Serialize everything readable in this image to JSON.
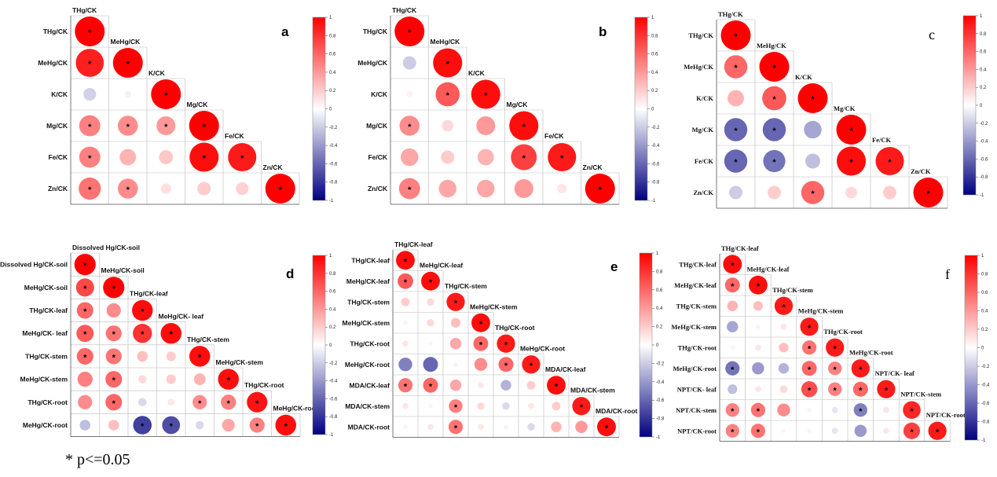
{
  "footnote": "* p<=0.05",
  "chart_data": [
    {
      "type": "heatmap",
      "panel": "a",
      "variables": [
        "THg/CK",
        "MeHg/CK",
        "K/CK",
        "Mg/CK",
        "Fe/CK",
        "Zn/CK"
      ],
      "colorbar_ticks": [
        1,
        0.8,
        0.6,
        0.4,
        0.2,
        0,
        -0.2,
        -0.4,
        -0.6,
        -0.8,
        -1
      ],
      "clim": [
        -1,
        1
      ],
      "values": [
        [
          1
        ],
        [
          0.88,
          1
        ],
        [
          -0.18,
          -0.05,
          1
        ],
        [
          0.5,
          0.45,
          0.4,
          1
        ],
        [
          0.5,
          0.3,
          0.22,
          0.95,
          0.9
        ],
        [
          0.55,
          0.45,
          0.12,
          0.2,
          0.18,
          1
        ]
      ],
      "significant": [
        [
          true
        ],
        [
          true,
          true
        ],
        [
          false,
          false,
          true
        ],
        [
          true,
          true,
          true,
          true
        ],
        [
          true,
          false,
          false,
          true,
          true
        ],
        [
          true,
          true,
          false,
          false,
          false,
          true
        ]
      ]
    },
    {
      "type": "heatmap",
      "panel": "b",
      "variables": [
        "THg/CK",
        "MeHg/CK",
        "K/CK",
        "Mg/CK",
        "Fe/CK",
        "Zn/CK"
      ],
      "colorbar_ticks": [
        1,
        0.8,
        0.6,
        0.4,
        0.2,
        0,
        -0.2,
        -0.4,
        -0.6,
        -0.8,
        -1
      ],
      "clim": [
        -1,
        1
      ],
      "values": [
        [
          1
        ],
        [
          -0.2,
          0.95
        ],
        [
          0.05,
          0.65,
          0.95
        ],
        [
          0.45,
          0.15,
          0.4,
          0.95
        ],
        [
          0.35,
          0.2,
          0.3,
          0.75,
          0.9
        ],
        [
          0.5,
          0.35,
          0.35,
          0.4,
          0.1,
          1
        ]
      ],
      "significant": [
        [
          true
        ],
        [
          false,
          true
        ],
        [
          false,
          true,
          true
        ],
        [
          true,
          false,
          false,
          true
        ],
        [
          false,
          false,
          false,
          true,
          true
        ],
        [
          true,
          false,
          false,
          false,
          false,
          true
        ]
      ]
    },
    {
      "type": "heatmap",
      "panel": "c",
      "variables": [
        "THg/CK",
        "MeHg/CK",
        "K/CK",
        "Mg/CK",
        "Fe/CK",
        "Zn/CK"
      ],
      "colorbar_ticks": [
        1,
        0.8,
        0.6,
        0.4,
        0.2,
        0,
        -0.2,
        -0.4,
        -0.6,
        -0.8,
        -1
      ],
      "clim": [
        -1,
        1
      ],
      "values": [
        [
          1
        ],
        [
          0.6,
          1
        ],
        [
          0.3,
          0.65,
          1
        ],
        [
          -0.6,
          -0.6,
          -0.35,
          1
        ],
        [
          -0.6,
          -0.55,
          -0.25,
          0.95,
          0.9
        ],
        [
          -0.2,
          0.2,
          0.6,
          0.15,
          0.2,
          1
        ]
      ],
      "significant": [
        [
          true
        ],
        [
          true,
          true
        ],
        [
          false,
          true,
          true
        ],
        [
          true,
          true,
          false,
          true
        ],
        [
          true,
          true,
          false,
          true,
          true
        ],
        [
          false,
          false,
          true,
          false,
          false,
          true
        ]
      ]
    },
    {
      "type": "heatmap",
      "panel": "d",
      "variables": [
        "Dissolved Hg/CK-soil",
        "MeHg/CK-soil",
        "THg/CK-leaf",
        "MeHg/CK- leaf",
        "THg/CK-stem",
        "MeHg/CK-stem",
        "THg/CK-root",
        "MeHg/CK-root"
      ],
      "colorbar_ticks": [
        1,
        0.8,
        0.6,
        0.4,
        0.2,
        0,
        -0.2,
        -0.4,
        -0.6,
        -0.8,
        -1
      ],
      "clim": [
        -1,
        1
      ],
      "values": [
        [
          1
        ],
        [
          0.72,
          1
        ],
        [
          0.6,
          0.45,
          0.95
        ],
        [
          0.65,
          0.55,
          0.8,
          0.95
        ],
        [
          0.6,
          0.55,
          0.25,
          0.2,
          0.95
        ],
        [
          0.5,
          0.6,
          0.15,
          0.2,
          0.3,
          0.95
        ],
        [
          0.45,
          0.6,
          -0.15,
          0.1,
          0.45,
          0.5,
          0.92
        ],
        [
          -0.25,
          0.25,
          -0.75,
          -0.7,
          -0.15,
          0.35,
          0.5,
          0.95
        ]
      ],
      "significant": [
        [
          true
        ],
        [
          true,
          true
        ],
        [
          true,
          false,
          true
        ],
        [
          true,
          true,
          true,
          true
        ],
        [
          true,
          true,
          false,
          false,
          true
        ],
        [
          false,
          true,
          false,
          false,
          false,
          true
        ],
        [
          false,
          true,
          false,
          false,
          true,
          true,
          true
        ],
        [
          false,
          false,
          true,
          true,
          false,
          false,
          true,
          true
        ]
      ]
    },
    {
      "type": "heatmap",
      "panel": "e",
      "variables": [
        "THg/CK-leaf",
        "MeHg/CK-leaf",
        "THg/CK-stem",
        "MeHg/CK-stem",
        "THg/CK-root",
        "MeHg/CK-root",
        "MDA/CK-leaf",
        "MDA/CK-stem",
        "MDA/CK-root"
      ],
      "colorbar_ticks": [
        1,
        0.8,
        0.6,
        0.4,
        0.2,
        0,
        -0.2,
        -0.4,
        -0.6,
        -0.8,
        -1
      ],
      "clim": [
        -1,
        1
      ],
      "values": [
        [
          0.95
        ],
        [
          0.65,
          0.95
        ],
        [
          0.2,
          0.15,
          0.9
        ],
        [
          0.05,
          0.15,
          0.25,
          0.95
        ],
        [
          0.1,
          0.05,
          0.35,
          0.6,
          0.9
        ],
        [
          -0.5,
          -0.6,
          -0.05,
          0.45,
          0.6,
          0.9
        ],
        [
          0.55,
          0.6,
          0.35,
          0.1,
          -0.3,
          0.2,
          0.95
        ],
        [
          0.1,
          0.05,
          0.5,
          0.15,
          -0.15,
          0.1,
          0.2,
          0.9
        ],
        [
          0.05,
          0.1,
          0.55,
          0.1,
          0.05,
          -0.15,
          0.3,
          0.4,
          0.95
        ]
      ],
      "significant": [
        [
          true
        ],
        [
          true,
          true
        ],
        [
          false,
          false,
          true
        ],
        [
          false,
          false,
          false,
          true
        ],
        [
          false,
          false,
          false,
          true,
          true
        ],
        [
          false,
          false,
          false,
          false,
          true,
          true
        ],
        [
          true,
          true,
          false,
          false,
          false,
          false,
          true
        ],
        [
          false,
          false,
          true,
          false,
          false,
          false,
          false,
          true
        ],
        [
          false,
          false,
          true,
          false,
          false,
          false,
          false,
          false,
          true
        ]
      ]
    },
    {
      "type": "heatmap",
      "panel": "f",
      "variables": [
        "THg/CK-leaf",
        "MeHg/CK-leaf",
        "THg/CK-stem",
        "MeHg/CK-stem",
        "THg/CK-root",
        "MeHg/CK-root",
        "NPT/CK- leaf",
        "NPT/CK-stem",
        "NPT/CK-root"
      ],
      "colorbar_ticks": [
        1,
        0.8,
        0.6,
        0.4,
        0.2,
        0,
        -0.2,
        -0.4,
        -0.6,
        -0.8,
        -1
      ],
      "clim": [
        -1,
        1
      ],
      "values": [
        [
          0.95
        ],
        [
          0.6,
          0.95
        ],
        [
          0.3,
          0.25,
          0.9
        ],
        [
          -0.35,
          0.05,
          0.1,
          0.9
        ],
        [
          0.05,
          0.1,
          0.25,
          0.55,
          0.9
        ],
        [
          -0.55,
          -0.4,
          -0.3,
          0.6,
          0.5,
          0.9
        ],
        [
          -0.25,
          0.1,
          0.15,
          0.7,
          0.5,
          0.6,
          0.9
        ],
        [
          0.5,
          0.55,
          0.45,
          0.05,
          -0.1,
          -0.5,
          0.1,
          0.85
        ],
        [
          0.5,
          0.55,
          0.05,
          0.05,
          -0.1,
          -0.4,
          0.1,
          0.75,
          0.9
        ]
      ],
      "significant": [
        [
          true
        ],
        [
          true,
          true
        ],
        [
          false,
          false,
          true
        ],
        [
          false,
          false,
          false,
          true
        ],
        [
          false,
          false,
          false,
          true,
          true
        ],
        [
          true,
          false,
          false,
          true,
          true,
          true
        ],
        [
          false,
          false,
          false,
          true,
          true,
          true,
          true
        ],
        [
          true,
          true,
          false,
          false,
          false,
          true,
          false,
          true
        ],
        [
          true,
          true,
          false,
          false,
          false,
          false,
          false,
          true,
          true
        ]
      ]
    }
  ]
}
